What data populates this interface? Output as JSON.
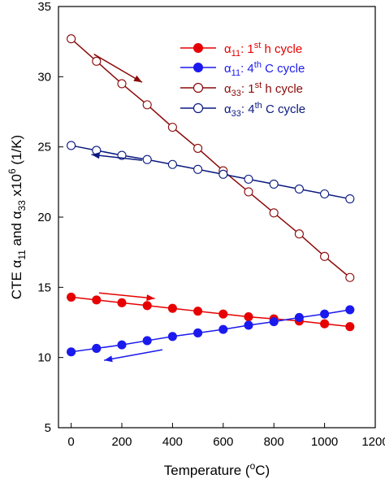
{
  "chart_data": {
    "type": "line",
    "xlabel": "Temperature (",
    "xlabel_sup": "o",
    "xlabel_end": "C)",
    "ylabel_parts": {
      "pre": "CTE ",
      "a11_sym": "α",
      "a11_sub": "11",
      "and": " and ",
      "a33_sym": "α",
      "a33_sub": "33",
      "x10": " x10",
      "exp": "6",
      "unit": " (1/K)"
    },
    "xlim": [
      -50,
      1200
    ],
    "ylim": [
      5,
      35
    ],
    "xticks": [
      0,
      200,
      400,
      600,
      800,
      1000,
      1200
    ],
    "yticks": [
      5,
      10,
      15,
      20,
      25,
      30,
      35
    ],
    "legend_position": "top-right",
    "series": [
      {
        "legend": {
          "sym": "α",
          "sub": "11",
          "mid": ": 1",
          "sup": "st",
          "end": " h cycle"
        },
        "color": "#e60000",
        "marker": "filled-circle",
        "x": [
          0,
          100,
          200,
          300,
          400,
          500,
          600,
          700,
          800,
          900,
          1000,
          1100
        ],
        "y": [
          14.3,
          14.1,
          13.9,
          13.7,
          13.5,
          13.3,
          13.1,
          12.9,
          12.75,
          12.6,
          12.4,
          12.2
        ]
      },
      {
        "legend": {
          "sym": "α",
          "sub": "11",
          "mid": ": 4",
          "sup": "th",
          "end": " C cycle"
        },
        "color": "#1a1aee",
        "marker": "filled-circle",
        "x": [
          0,
          100,
          200,
          300,
          400,
          500,
          600,
          700,
          800,
          900,
          1000,
          1100
        ],
        "y": [
          10.4,
          10.65,
          10.9,
          11.2,
          11.5,
          11.75,
          12.0,
          12.3,
          12.55,
          12.85,
          13.1,
          13.4
        ]
      },
      {
        "legend": {
          "sym": "α",
          "sub": "33",
          "mid": ": 1",
          "sup": "st",
          "end": " h cycle"
        },
        "color": "#8b0a0a",
        "marker": "open-circle",
        "x": [
          0,
          100,
          200,
          300,
          400,
          500,
          600,
          700,
          800,
          900,
          1000,
          1100
        ],
        "y": [
          32.7,
          31.1,
          29.5,
          28.0,
          26.4,
          24.9,
          23.3,
          21.8,
          20.3,
          18.8,
          17.2,
          15.7
        ]
      },
      {
        "legend": {
          "sym": "α",
          "sub": "33",
          "mid": ": 4",
          "sup": "th",
          "end": " C cycle"
        },
        "color": "#0a1a80",
        "marker": "open-circle",
        "x": [
          0,
          100,
          200,
          300,
          400,
          500,
          600,
          700,
          800,
          900,
          1000,
          1100
        ],
        "y": [
          25.1,
          24.75,
          24.4,
          24.1,
          23.75,
          23.4,
          23.05,
          22.7,
          22.35,
          22.0,
          21.65,
          21.3
        ]
      }
    ],
    "arrows": [
      {
        "color": "#8b0a0a",
        "from": [
          90,
          31.6
        ],
        "to": [
          280,
          29.6
        ]
      },
      {
        "color": "#0a1a80",
        "from": [
          280,
          24.05
        ],
        "to": [
          80,
          24.45
        ]
      },
      {
        "color": "#e60000",
        "from": [
          110,
          14.6
        ],
        "to": [
          330,
          14.2
        ]
      },
      {
        "color": "#1a1aee",
        "from": [
          360,
          10.55
        ],
        "to": [
          130,
          9.8
        ]
      }
    ]
  }
}
